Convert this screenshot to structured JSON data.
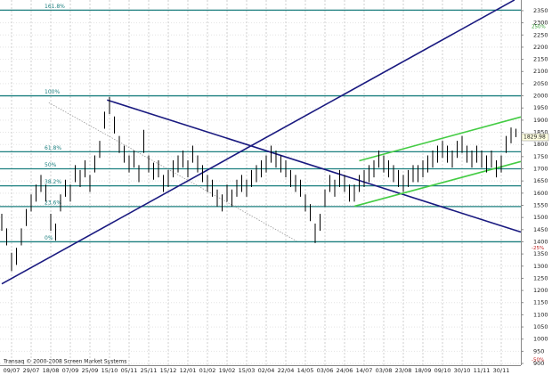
{
  "chart_data": {
    "type": "ohlc",
    "categories": [
      null,
      null,
      "09/07",
      null,
      null,
      null,
      "29/07",
      null,
      null,
      null,
      "18/08",
      null,
      null,
      null,
      "07/09",
      null,
      null,
      null,
      "25/09",
      null,
      null,
      null,
      "15/10",
      null,
      null,
      null,
      "05/11",
      null,
      null,
      null,
      "25/11",
      null,
      null,
      null,
      "15/12",
      null,
      null,
      null,
      "12/01",
      null,
      null,
      null,
      "01/02",
      null,
      null,
      null,
      "19/02",
      null,
      null,
      null,
      "15/03",
      null,
      null,
      null,
      "02/04",
      null,
      null,
      null,
      "22/04",
      null,
      null,
      null,
      "14/05",
      null,
      null,
      null,
      "03/06",
      null,
      null,
      null,
      "24/06",
      null,
      null,
      null,
      "14/07",
      null,
      null,
      null,
      "03/08",
      null,
      null,
      null,
      "23/08",
      null,
      null,
      null,
      "18/09",
      null,
      null,
      null,
      "09/10",
      null,
      null,
      null,
      "30/10",
      null,
      null,
      null,
      "11/11",
      null,
      null,
      null,
      "30/11",
      null,
      null,
      null
    ],
    "high": [
      1515,
      1455,
      1355,
      1375,
      1455,
      1535,
      1595,
      1635,
      1675,
      1635,
      1515,
      1475,
      1595,
      1655,
      1635,
      1715,
      1695,
      1735,
      1675,
      1755,
      1815,
      1935,
      1995,
      1915,
      1835,
      1795,
      1755,
      1775,
      1715,
      1860,
      1755,
      1725,
      1735,
      1675,
      1695,
      1735,
      1755,
      1775,
      1735,
      1795,
      1755,
      1715,
      1675,
      1655,
      1615,
      1595,
      1635,
      1615,
      1655,
      1675,
      1655,
      1695,
      1715,
      1735,
      1755,
      1795,
      1775,
      1755,
      1735,
      1695,
      1675,
      1655,
      1595,
      1555,
      1475,
      1515,
      1615,
      1675,
      1655,
      1695,
      1675,
      1635,
      1635,
      1675,
      1695,
      1715,
      1735,
      1775,
      1755,
      1735,
      1715,
      1695,
      1675,
      1695,
      1715,
      1715,
      1735,
      1755,
      1775,
      1795,
      1815,
      1795,
      1775,
      1815,
      1835,
      1795,
      1775,
      1795,
      1775,
      1755,
      1775,
      1735,
      1755,
      1835,
      1870,
      1865
    ],
    "low": [
      1445,
      1385,
      1280,
      1305,
      1385,
      1465,
      1525,
      1565,
      1605,
      1565,
      1445,
      1405,
      1525,
      1585,
      1565,
      1645,
      1625,
      1665,
      1605,
      1685,
      1745,
      1865,
      1925,
      1845,
      1765,
      1725,
      1685,
      1705,
      1645,
      1765,
      1685,
      1655,
      1665,
      1605,
      1625,
      1665,
      1685,
      1705,
      1665,
      1725,
      1685,
      1645,
      1605,
      1585,
      1545,
      1525,
      1565,
      1545,
      1585,
      1605,
      1585,
      1625,
      1645,
      1665,
      1685,
      1725,
      1705,
      1685,
      1665,
      1625,
      1605,
      1585,
      1525,
      1485,
      1395,
      1445,
      1545,
      1605,
      1585,
      1625,
      1605,
      1565,
      1565,
      1605,
      1625,
      1645,
      1665,
      1705,
      1685,
      1665,
      1645,
      1625,
      1605,
      1625,
      1645,
      1645,
      1665,
      1685,
      1705,
      1725,
      1745,
      1725,
      1705,
      1745,
      1765,
      1725,
      1705,
      1725,
      1705,
      1685,
      1705,
      1665,
      1685,
      1765,
      1805,
      1830
    ],
    "color": "#000000",
    "ylim": [
      880,
      2400
    ],
    "yticks": [
      900,
      950,
      1000,
      1050,
      1100,
      1150,
      1200,
      1250,
      1300,
      1350,
      1400,
      1450,
      1500,
      1550,
      1600,
      1650,
      1700,
      1750,
      1800,
      1850,
      1900,
      1950,
      2000,
      2050,
      2100,
      2150,
      2200,
      2250,
      2300,
      2350
    ],
    "grid": true,
    "fib_color": "#1b7f7f",
    "fib_levels": [
      {
        "label": "161.8%",
        "value": 2352
      },
      {
        "label": "100%",
        "value": 2000
      },
      {
        "label": "61.8%",
        "value": 1770
      },
      {
        "label": "50%",
        "value": 1700
      },
      {
        "label": "38.2%",
        "value": 1630
      },
      {
        "label": "23.6%",
        "value": 1545
      },
      {
        "label": "0%",
        "value": 1400
      }
    ],
    "trendlines": [
      {
        "color": "#1a1a80",
        "dashed": false,
        "x": [
          0,
          104.7
        ],
        "y": [
          1227,
          2394
        ]
      },
      {
        "color": "#1a1a80",
        "dashed": false,
        "x": [
          21.5,
          106
        ],
        "y": [
          1983,
          1440
        ]
      },
      {
        "color": "#44cc44",
        "dashed": false,
        "x": [
          73,
          106
        ],
        "y": [
          1733,
          1913
        ]
      },
      {
        "color": "#44cc44",
        "dashed": false,
        "x": [
          72,
          106
        ],
        "y": [
          1546,
          1730
        ]
      },
      {
        "color": "#999999",
        "dashed": true,
        "x": [
          9.6,
          60.2
        ],
        "y": [
          1972,
          1403
        ]
      }
    ],
    "side_labels": [
      {
        "label": "250%",
        "value": 2284,
        "color": "#2a9a2a"
      },
      {
        "label": "-25%",
        "value": 1375,
        "color": "#c02020"
      },
      {
        "label": "-50%",
        "value": 915,
        "color": "#c02020"
      }
    ],
    "last_price": {
      "label": "1829.98",
      "value": 1829.98
    },
    "copyright": "Transaq © 2000-2008 Screen Market Systems"
  }
}
